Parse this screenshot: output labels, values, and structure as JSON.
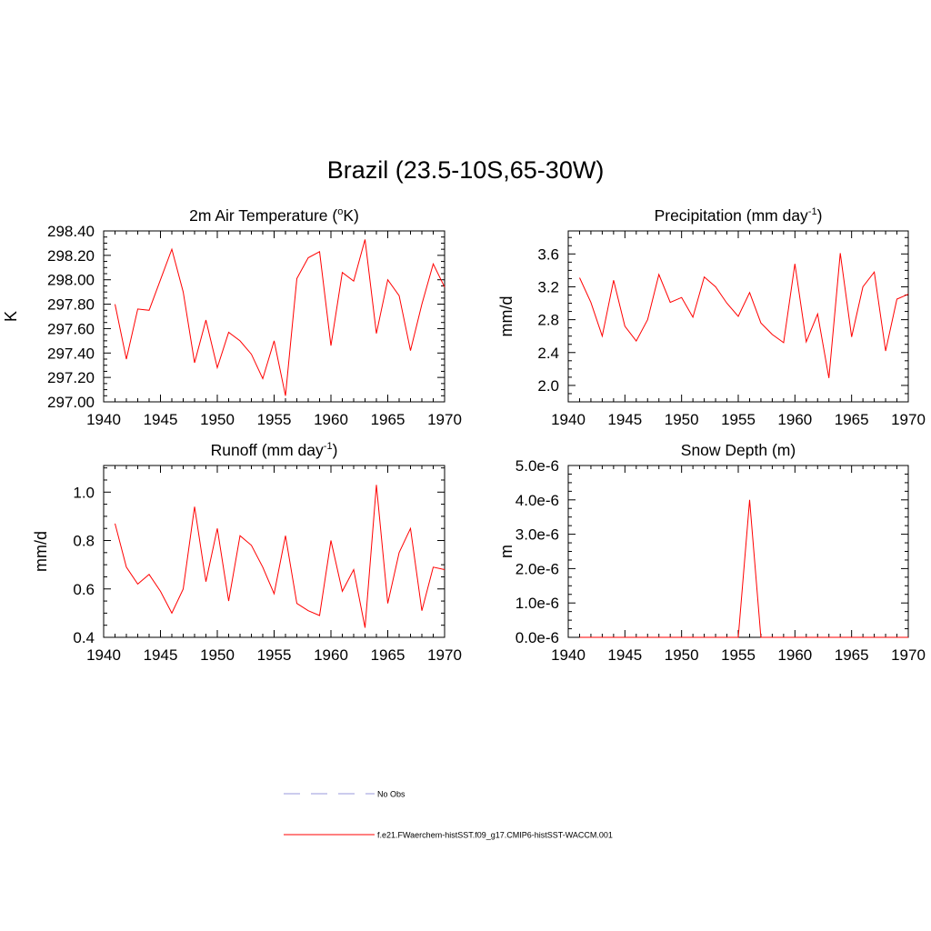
{
  "title": "Brazil (23.5-10S,65-30W)",
  "colors": {
    "model": "#ff0000",
    "obs": "#9999dd",
    "axis": "#000000"
  },
  "chart_data": [
    {
      "type": "line",
      "title": "2m Air Temperature (",
      "title_super": "o",
      "title_tail": "K)",
      "ylabel": "K",
      "xlim": [
        1940,
        1970
      ],
      "ylim": [
        297.0,
        298.4
      ],
      "xticks": [
        1940,
        1945,
        1950,
        1955,
        1960,
        1965,
        1970
      ],
      "yticks": [
        297.0,
        297.2,
        297.4,
        297.6,
        297.8,
        298.0,
        298.2,
        298.4
      ],
      "ytick_labels": [
        "297.00",
        "297.20",
        "297.40",
        "297.60",
        "297.80",
        "298.00",
        "298.20",
        "298.40"
      ],
      "series": [
        {
          "x": [
            1941,
            1942,
            1943,
            1944,
            1945,
            1946,
            1947,
            1948,
            1949,
            1950,
            1951,
            1952,
            1953,
            1954,
            1955,
            1956,
            1957,
            1958,
            1959,
            1960,
            1961,
            1962,
            1963,
            1964,
            1965,
            1966,
            1967,
            1968,
            1969,
            1970
          ],
          "values": [
            297.8,
            297.35,
            297.76,
            297.75,
            298.0,
            298.25,
            297.9,
            297.32,
            297.67,
            297.28,
            297.57,
            297.5,
            297.39,
            297.19,
            297.5,
            297.05,
            298.01,
            298.18,
            298.23,
            297.46,
            298.06,
            297.99,
            298.33,
            297.56,
            298.0,
            297.87,
            297.42,
            297.8,
            298.13,
            297.94
          ]
        }
      ]
    },
    {
      "type": "line",
      "title": "Precipitation (mm day",
      "title_super": "-1",
      "title_tail": ")",
      "ylabel": "mm/d",
      "xlim": [
        1940,
        1970
      ],
      "ylim": [
        1.8,
        3.88
      ],
      "xticks": [
        1940,
        1945,
        1950,
        1955,
        1960,
        1965,
        1970
      ],
      "yticks": [
        2.0,
        2.4,
        2.8,
        3.2,
        3.6
      ],
      "ytick_labels": [
        "2.0",
        "2.4",
        "2.8",
        "3.2",
        "3.6"
      ],
      "series": [
        {
          "x": [
            1941,
            1942,
            1943,
            1944,
            1945,
            1946,
            1947,
            1948,
            1949,
            1950,
            1951,
            1952,
            1953,
            1954,
            1955,
            1956,
            1957,
            1958,
            1959,
            1960,
            1961,
            1962,
            1963,
            1964,
            1965,
            1966,
            1967,
            1968,
            1969,
            1970
          ],
          "values": [
            3.31,
            3.01,
            2.6,
            3.28,
            2.72,
            2.54,
            2.8,
            3.35,
            3.01,
            3.07,
            2.83,
            3.32,
            3.2,
            3.0,
            2.84,
            3.13,
            2.76,
            2.62,
            2.52,
            3.48,
            2.53,
            2.87,
            2.09,
            3.61,
            2.59,
            3.2,
            3.38,
            2.42,
            3.05,
            3.11
          ]
        }
      ]
    },
    {
      "type": "line",
      "title": "Runoff (mm day",
      "title_super": "-1",
      "title_tail": ")",
      "ylabel": "mm/d",
      "xlim": [
        1940,
        1970
      ],
      "ylim": [
        0.4,
        1.11
      ],
      "xticks": [
        1940,
        1945,
        1950,
        1955,
        1960,
        1965,
        1970
      ],
      "yticks": [
        0.4,
        0.6,
        0.8,
        1.0
      ],
      "ytick_labels": [
        "0.4",
        "0.6",
        "0.8",
        "1.0"
      ],
      "series": [
        {
          "x": [
            1941,
            1942,
            1943,
            1944,
            1945,
            1946,
            1947,
            1948,
            1949,
            1950,
            1951,
            1952,
            1953,
            1954,
            1955,
            1956,
            1957,
            1958,
            1959,
            1960,
            1961,
            1962,
            1963,
            1964,
            1965,
            1966,
            1967,
            1968,
            1969,
            1970
          ],
          "values": [
            0.87,
            0.69,
            0.62,
            0.66,
            0.59,
            0.5,
            0.6,
            0.94,
            0.63,
            0.85,
            0.55,
            0.82,
            0.78,
            0.69,
            0.58,
            0.82,
            0.54,
            0.51,
            0.49,
            0.8,
            0.59,
            0.68,
            0.44,
            1.03,
            0.54,
            0.75,
            0.85,
            0.51,
            0.69,
            0.68
          ]
        }
      ]
    },
    {
      "type": "line",
      "title": "Snow Depth (m)",
      "title_super": "",
      "title_tail": "",
      "ylabel": "m",
      "xlim": [
        1940,
        1970
      ],
      "ylim": [
        0.0,
        5e-06
      ],
      "xticks": [
        1940,
        1945,
        1950,
        1955,
        1960,
        1965,
        1970
      ],
      "yticks": [
        0.0,
        1e-06,
        2e-06,
        3e-06,
        4e-06,
        5e-06
      ],
      "ytick_labels": [
        "0.0e-6",
        "1.0e-6",
        "2.0e-6",
        "3.0e-6",
        "4.0e-6",
        "5.0e-6"
      ],
      "series": [
        {
          "x": [
            1941,
            1942,
            1943,
            1944,
            1945,
            1946,
            1947,
            1948,
            1949,
            1950,
            1951,
            1952,
            1953,
            1954,
            1955,
            1956,
            1957,
            1958,
            1959,
            1960,
            1961,
            1962,
            1963,
            1964,
            1965,
            1966,
            1967,
            1968,
            1969,
            1970
          ],
          "values": [
            0,
            0,
            0,
            0,
            0,
            0,
            0,
            0,
            0,
            0,
            0,
            0,
            0,
            0,
            0,
            4e-06,
            0,
            0,
            0,
            0,
            0,
            0,
            0,
            0,
            0,
            0,
            0,
            0,
            0,
            0
          ]
        }
      ]
    }
  ],
  "legend": [
    {
      "label": "No Obs",
      "style": "dashed",
      "color": "#9999dd"
    },
    {
      "label": "f.e21.FWaerchem-histSST.f09_g17.CMIP6-histSST-WACCM.001",
      "style": "solid",
      "color": "#ff0000"
    }
  ]
}
